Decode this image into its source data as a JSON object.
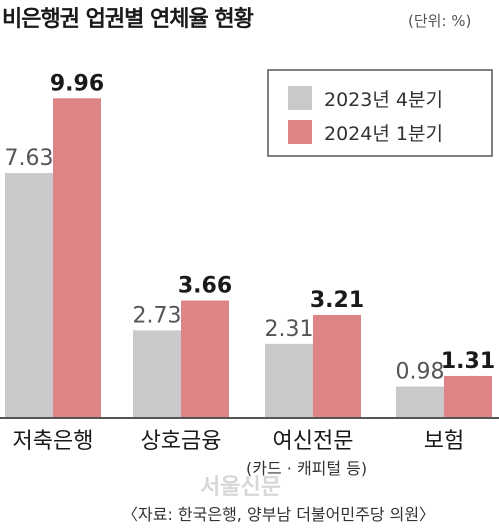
{
  "title": "비은행권 업권별 연체율 현황",
  "unit": "(단위: %)",
  "colors": {
    "series_2023": "#c9c9c9",
    "series_2024": "#de8386",
    "axis": "#555555"
  },
  "legend": [
    "2023년 4분기",
    "2024년 1분기"
  ],
  "chart_data": {
    "type": "bar",
    "title": "비은행권 업권별 연체율 현황",
    "unit": "%",
    "categories": [
      "저축은행",
      "상호금융",
      "여신전문",
      "보험"
    ],
    "series": [
      {
        "name": "2023년 4분기",
        "values": [
          7.63,
          2.73,
          2.31,
          0.98
        ]
      },
      {
        "name": "2024년 1분기",
        "values": [
          9.96,
          3.66,
          3.21,
          1.31
        ]
      }
    ],
    "value_labels": [
      [
        "7.63",
        "2.73",
        "2.31",
        "0.98"
      ],
      [
        "9.96",
        "3.66",
        "3.21",
        "1.31"
      ]
    ],
    "ylim": [
      0,
      10
    ],
    "legend_position": "top-right",
    "grid": false
  },
  "note": "(카드 · 캐피털 등)",
  "source": "〈자료: 한국은행, 양부남 더불어민주당 의원〉",
  "watermark": "서울신문"
}
